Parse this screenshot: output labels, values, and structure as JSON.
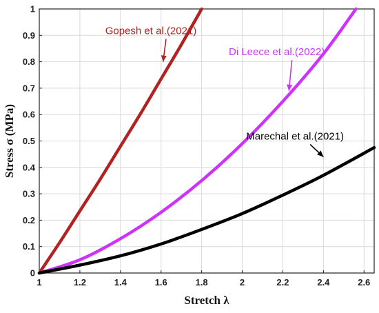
{
  "chart_data": {
    "type": "line",
    "xlabel": "Stretch λ",
    "ylabel": "Stress σ (MPa)",
    "xlim": [
      1,
      2.65
    ],
    "ylim": [
      0,
      1
    ],
    "xticks": [
      1,
      1.2,
      1.4,
      1.6,
      1.8,
      2,
      2.2,
      2.4,
      2.6
    ],
    "xtick_labels": [
      "1",
      "1.2",
      "1.4",
      "1.6",
      "1.8",
      "2",
      "2.2",
      "2.4",
      "2.6"
    ],
    "yticks": [
      0,
      0.1,
      0.2,
      0.3,
      0.4,
      0.5,
      0.6,
      0.7,
      0.8,
      0.9,
      1
    ],
    "ytick_labels": [
      "0",
      "0.1",
      "0.2",
      "0.3",
      "0.4",
      "0.5",
      "0.6",
      "0.7",
      "0.8",
      "0.9",
      "1"
    ],
    "grid": true,
    "series": [
      {
        "name": "Gopesh et al.(2021)",
        "color": "#b22222",
        "x": [
          1,
          1.1,
          1.2,
          1.3,
          1.4,
          1.5,
          1.6,
          1.7,
          1.8
        ],
        "y": [
          0,
          0.115,
          0.235,
          0.355,
          0.48,
          0.605,
          0.735,
          0.865,
          1.0
        ]
      },
      {
        "name": "Di Leece et al.(2022)",
        "color": "#cc33ff",
        "x": [
          1,
          1.2,
          1.4,
          1.6,
          1.8,
          2.0,
          2.2,
          2.4,
          2.56
        ],
        "y": [
          0,
          0.05,
          0.13,
          0.23,
          0.35,
          0.49,
          0.65,
          0.83,
          1.0
        ]
      },
      {
        "name": "Marechal et al.(2021)",
        "color": "#000000",
        "x": [
          1,
          1.2,
          1.4,
          1.6,
          1.8,
          2.0,
          2.2,
          2.4,
          2.65
        ],
        "y": [
          0,
          0.03,
          0.065,
          0.11,
          0.165,
          0.225,
          0.295,
          0.37,
          0.475
        ]
      }
    ],
    "annotations": [
      {
        "text": "Gopesh et al.(2021)",
        "color": "#b22222",
        "x": 1.55,
        "y": 0.905,
        "arrow_to": [
          1.61,
          0.8
        ]
      },
      {
        "text": "Di Leece et al.(2022)",
        "color": "#cc33ff",
        "x": 2.17,
        "y": 0.825,
        "arrow_to": [
          2.23,
          0.69
        ]
      },
      {
        "text": "Marechal et al.(2021)",
        "color": "#000000",
        "x": 2.26,
        "y": 0.505,
        "arrow_to": [
          2.4,
          0.44
        ]
      }
    ]
  }
}
